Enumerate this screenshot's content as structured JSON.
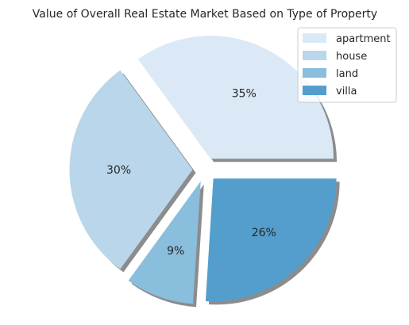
{
  "chart_data": {
    "type": "pie",
    "title": "Value of Overall Real Estate Market Based on Type of Property",
    "labels": [
      "apartment",
      "house",
      "land",
      "villa"
    ],
    "values": [
      35,
      30,
      9,
      26
    ],
    "value_labels": [
      "35%",
      "30%",
      "9%",
      "26%"
    ],
    "colors": [
      "#dbe9f6",
      "#bad6eb",
      "#89bedc",
      "#539ecd"
    ],
    "start_angle_deg": 0,
    "direction": "counterclockwise",
    "exploded": true,
    "shadow": true,
    "legend_position": "top-right"
  }
}
